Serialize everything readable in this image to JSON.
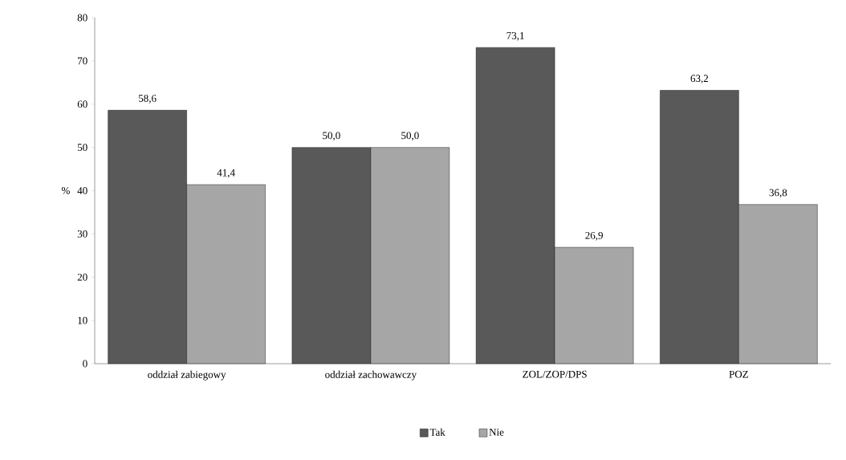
{
  "chart_data": {
    "type": "bar",
    "ylabel": "%",
    "categories": [
      "oddział zabiegowy",
      "oddział zachowawczy",
      "ZOL/ZOP/DPS",
      "POZ"
    ],
    "series": [
      {
        "name": "Tak",
        "color": "#595959",
        "values": [
          58.6,
          50.0,
          73.1,
          63.2
        ],
        "value_labels": [
          "58,6",
          "50,0",
          "73,1",
          "63,2"
        ]
      },
      {
        "name": "Nie",
        "color": "#a6a6a6",
        "values": [
          41.4,
          50.0,
          26.9,
          36.8
        ],
        "value_labels": [
          "41,4",
          "50,0",
          "26,9",
          "36,8"
        ]
      }
    ],
    "ylim": [
      0,
      80
    ],
    "yticks": [
      0,
      10,
      20,
      30,
      40,
      50,
      60,
      70,
      80
    ],
    "legend": "bottom",
    "grid": false
  }
}
